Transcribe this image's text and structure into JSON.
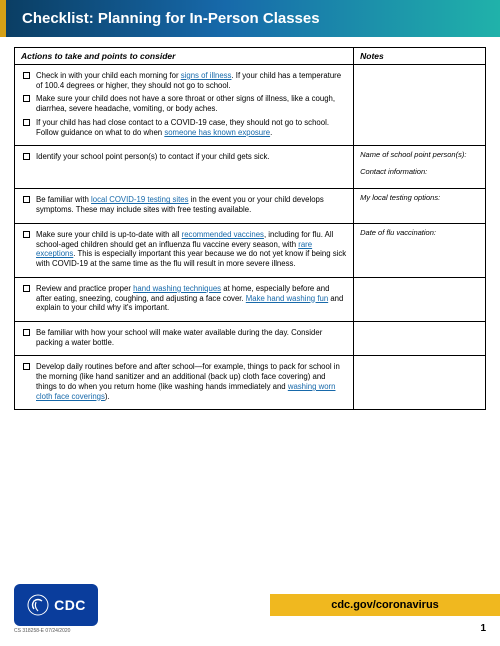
{
  "header": {
    "title": "Checklist: Planning for In-Person Classes"
  },
  "columns": {
    "actions": "Actions to take and points to consider",
    "notes": "Notes"
  },
  "rows": [
    {
      "notes": [],
      "items": [
        {
          "pre": "Check in with your child each morning for ",
          "link": "signs of illness",
          "post": ". If your child has a temperature of 100.4 degrees or higher, they should not go to school."
        },
        {
          "pre": "Make sure your child does not have a sore throat or other signs of illness, like a cough, diarrhea, severe headache, vomiting, or body aches.",
          "link": "",
          "post": ""
        },
        {
          "pre": "If your child has had close contact to a COVID-19 case, they should not go to school. Follow guidance on what to do when ",
          "link": "someone has known exposure",
          "post": "."
        }
      ]
    },
    {
      "notes": [
        "Name of school point person(s):",
        "Contact information:"
      ],
      "items": [
        {
          "pre": "Identify your school point person(s) to contact if your child gets sick.",
          "link": "",
          "post": ""
        }
      ]
    },
    {
      "notes": [
        "My local testing options:"
      ],
      "items": [
        {
          "pre": "Be familiar with ",
          "link": "local COVID-19 testing sites",
          "post": " in the event you or your child develops symptoms. These may include sites with free testing available."
        }
      ]
    },
    {
      "notes": [
        "Date of flu vaccination:"
      ],
      "items": [
        {
          "pre": "Make sure your child is up-to-date with all ",
          "link": "recommended vaccines",
          "post": ", including for flu. All school-aged children should get an influenza flu vaccine every season, with ",
          "link2": "rare exceptions",
          "post2": ". This is especially important this year because we do not yet know if being sick with COVID-19 at the same time as the flu will result in more severe illness."
        }
      ]
    },
    {
      "notes": [],
      "items": [
        {
          "pre": "Review and practice proper ",
          "link": "hand washing techniques",
          "post": " at home, especially before and after eating, sneezing, coughing, and adjusting a face cover. ",
          "link2": "Make hand washing fun",
          "post2": " and explain to your child why it's important."
        }
      ]
    },
    {
      "notes": [],
      "items": [
        {
          "pre": "Be familiar with how your school will make water available during the day. Consider packing a water bottle.",
          "link": "",
          "post": ""
        }
      ]
    },
    {
      "notes": [],
      "items": [
        {
          "pre": "Develop daily routines before and after school—for example, things to pack for school in the morning (like hand sanitizer and an additional (back up) cloth face covering) and things to do when you return home (like washing hands immediately and ",
          "link": "washing worn cloth face coverings",
          "post": ")."
        }
      ]
    }
  ],
  "footer": {
    "cdc": "CDC",
    "url": "cdc.gov/coronavirus",
    "url_bg": "#f0b81f",
    "pubid": "CS 318258-E    07/24/2020",
    "page": "1"
  }
}
